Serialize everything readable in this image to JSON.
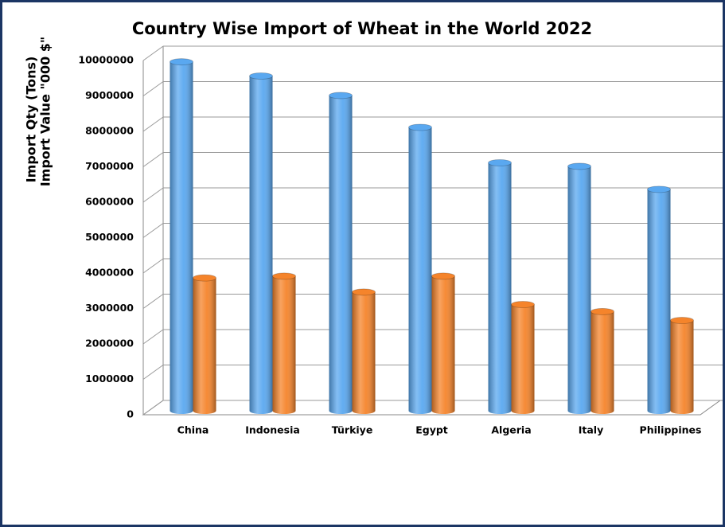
{
  "chart_data": {
    "type": "bar3d",
    "title": "Country Wise Import of Wheat in the World 2022",
    "ylabel": [
      "Import Qty (Tons)",
      "Import Value \"000 $\""
    ],
    "categories": [
      "China",
      "Indonesia",
      "Türkiye",
      "Egypt",
      "Algeria",
      "Italy",
      "Philippines"
    ],
    "series": [
      {
        "color": "#5aa8f0",
        "values": [
          9850000,
          9450000,
          8900000,
          8000000,
          7000000,
          6900000,
          6250000
        ]
      },
      {
        "color": "#f5842b",
        "values": [
          3750000,
          3800000,
          3350000,
          3800000,
          3000000,
          2800000,
          2550000
        ]
      }
    ],
    "ylim": [
      0,
      10000000
    ],
    "yticks": [
      0,
      1000000,
      2000000,
      3000000,
      4000000,
      5000000,
      6000000,
      7000000,
      8000000,
      9000000,
      10000000
    ],
    "grid": true
  }
}
